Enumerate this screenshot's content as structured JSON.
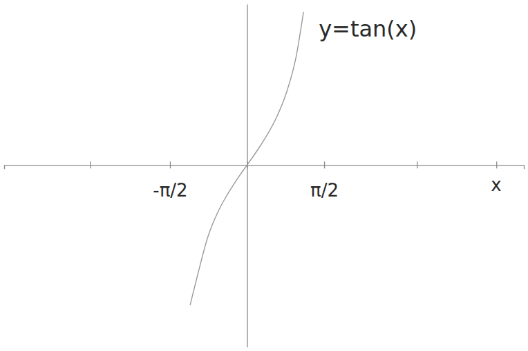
{
  "chart_data": {
    "type": "line",
    "xlabel": "x",
    "xlim": [
      -4.95,
      5.64
    ],
    "ylim": [
      -2.6,
      2.3
    ],
    "xticks": [
      {
        "value": -3.2,
        "label": null
      },
      {
        "value": -1.5708,
        "label": "-π/2"
      },
      {
        "value": 0,
        "label": null
      },
      {
        "value": 1.5708,
        "label": "π/2"
      },
      {
        "value": 3.46,
        "label": null
      },
      {
        "value": 5.08,
        "label": null
      }
    ],
    "yticks": [],
    "tick_labels": "x",
    "grid": false,
    "series": [
      {
        "name": "y=tan(x)",
        "color": "#9a9a9a",
        "line_style": "solid",
        "x": [
          -1.16,
          -1.0,
          -0.8,
          -0.6,
          -0.4,
          -0.2,
          0,
          0.2,
          0.4,
          0.6,
          0.8,
          1.0,
          1.15
        ],
        "values": [
          -2.0,
          -1.55,
          -1.03,
          -0.68,
          -0.42,
          -0.2,
          0,
          0.2,
          0.42,
          0.68,
          1.03,
          1.55,
          2.19
        ]
      }
    ]
  }
}
